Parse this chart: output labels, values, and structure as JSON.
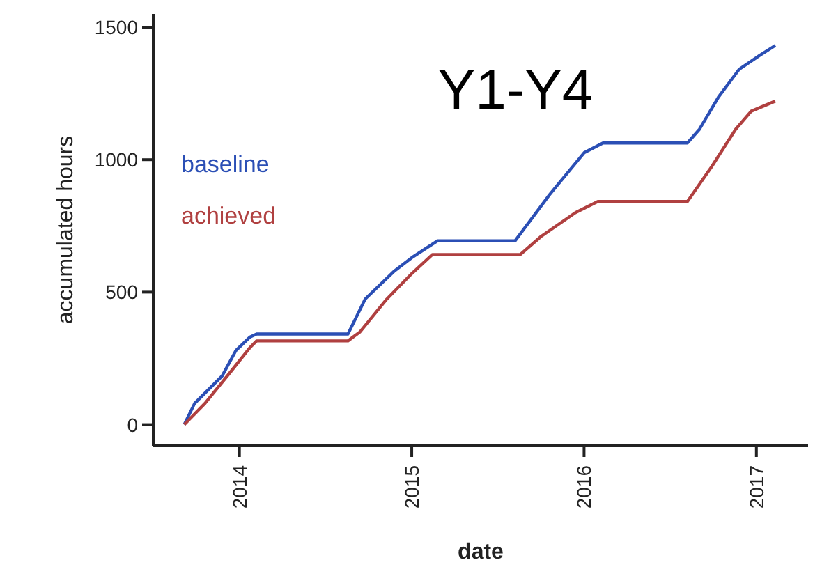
{
  "chart_data": {
    "type": "line",
    "title": "Y1-Y4",
    "xlabel": "date",
    "ylabel": "accumulated hours",
    "xlim": [
      2013.5,
      2017.3
    ],
    "xticks": [
      2014,
      2015,
      2016,
      2017
    ],
    "ylim": [
      -80,
      1550
    ],
    "yticks": [
      0,
      500,
      1000,
      1500
    ],
    "grid": false,
    "legend": "top left",
    "line_style": "solid",
    "marker": "none",
    "series": [
      {
        "name": "baseline",
        "color": "#2b4fb5",
        "x": [
          2013.68,
          2013.74,
          2013.9,
          2013.98,
          2014.06,
          2014.1,
          2014.63,
          2014.73,
          2014.9,
          2015.0,
          2015.15,
          2015.6,
          2015.8,
          2016.0,
          2016.11,
          2016.6,
          2016.67,
          2016.78,
          2016.9,
          2017.02,
          2017.11
        ],
        "values": [
          0,
          80,
          184,
          280,
          330,
          342,
          342,
          474,
          580,
          630,
          694,
          694,
          868,
          1026,
          1063,
          1063,
          1115,
          1236,
          1341,
          1394,
          1431
        ]
      },
      {
        "name": "achieved",
        "color": "#b04040",
        "x": [
          2013.68,
          2013.8,
          2013.95,
          2014.06,
          2014.1,
          2014.63,
          2014.7,
          2014.85,
          2015.0,
          2015.12,
          2015.63,
          2015.75,
          2015.95,
          2016.08,
          2016.6,
          2016.74,
          2016.88,
          2016.97,
          2017.11
        ],
        "values": [
          0,
          80,
          200,
          290,
          316,
          316,
          350,
          470,
          570,
          642,
          642,
          710,
          800,
          842,
          842,
          973,
          1115,
          1183,
          1221
        ]
      }
    ]
  }
}
